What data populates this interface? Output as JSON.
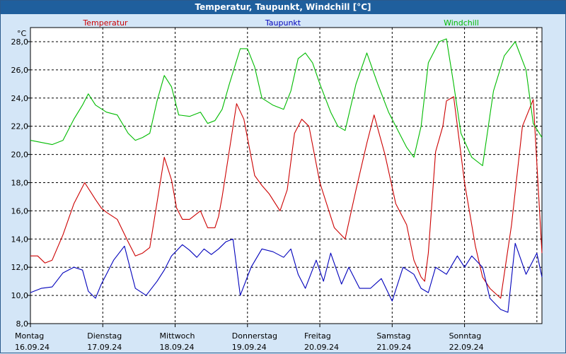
{
  "window": {
    "title": "Temperatur, Taupunkt, Windchill [°C]"
  },
  "chart_data": {
    "type": "line",
    "title": "Temperatur, Taupunkt, Windchill [°C]",
    "ylabel": "°C",
    "ylim": [
      8.0,
      29.0
    ],
    "yticks": [
      "8,0",
      "10,0",
      "12,0",
      "14,0",
      "16,0",
      "18,0",
      "20,0",
      "22,0",
      "24,0",
      "26,0",
      "28,0"
    ],
    "xlim": [
      0,
      7.07
    ],
    "day_labels": [
      {
        "day": "Montag",
        "date": "16.09.24"
      },
      {
        "day": "Dienstag",
        "date": "17.09.24"
      },
      {
        "day": "Mittwoch",
        "date": "18.09.24"
      },
      {
        "day": "Donnerstag",
        "date": "19.09.24"
      },
      {
        "day": "Freitag",
        "date": "20.09.24"
      },
      {
        "day": "Samstag",
        "date": "21.09.24"
      },
      {
        "day": "Sonntag",
        "date": "22.09.24"
      }
    ],
    "grid": true,
    "series": [
      {
        "name": "Temperatur",
        "color": "#cc0000",
        "x": [
          0,
          0.1,
          0.2,
          0.3,
          0.45,
          0.6,
          0.75,
          0.9,
          0.98,
          1.05,
          1.2,
          1.35,
          1.45,
          1.55,
          1.65,
          1.85,
          1.95,
          2.02,
          2.1,
          2.2,
          2.35,
          2.45,
          2.55,
          2.6,
          2.65,
          2.75,
          2.85,
          2.95,
          3.1,
          3.2,
          3.3,
          3.45,
          3.55,
          3.65,
          3.75,
          3.85,
          4.0,
          4.2,
          4.35,
          4.5,
          4.65,
          4.75,
          4.9,
          5.05,
          5.2,
          5.3,
          5.4,
          5.45,
          5.5,
          5.6,
          5.7,
          5.75,
          5.85,
          6.0,
          6.15,
          6.25,
          6.35,
          6.5,
          6.65,
          6.8,
          6.95,
          7.07
        ],
        "values": [
          12.8,
          12.8,
          12.3,
          12.5,
          14.3,
          16.5,
          18.0,
          16.8,
          16.2,
          15.9,
          15.4,
          13.8,
          12.8,
          13.0,
          13.4,
          19.8,
          18.2,
          16.2,
          15.4,
          15.4,
          16.0,
          14.8,
          14.8,
          15.6,
          17.0,
          20.3,
          23.6,
          22.5,
          18.5,
          17.8,
          17.2,
          16.0,
          17.5,
          21.5,
          22.5,
          22.0,
          18.0,
          14.8,
          14.0,
          17.5,
          20.8,
          22.8,
          20.0,
          16.5,
          15.0,
          12.5,
          11.3,
          11.0,
          13.0,
          20.2,
          22.0,
          23.8,
          24.1,
          18.0,
          13.5,
          11.3,
          10.5,
          9.8,
          15.0,
          22.0,
          23.9,
          13.0
        ]
      },
      {
        "name": "Taupunkt",
        "color": "#0000bb",
        "x": [
          0,
          0.15,
          0.3,
          0.45,
          0.6,
          0.72,
          0.8,
          0.9,
          0.98,
          1.05,
          1.15,
          1.3,
          1.45,
          1.6,
          1.75,
          1.85,
          1.95,
          2.1,
          2.2,
          2.3,
          2.4,
          2.5,
          2.6,
          2.7,
          2.8,
          2.9,
          3.05,
          3.2,
          3.35,
          3.5,
          3.6,
          3.7,
          3.8,
          3.95,
          4.05,
          4.15,
          4.3,
          4.4,
          4.55,
          4.7,
          4.85,
          5.0,
          5.15,
          5.3,
          5.4,
          5.5,
          5.6,
          5.75,
          5.9,
          6.0,
          6.1,
          6.25,
          6.35,
          6.5,
          6.6,
          6.7,
          6.85,
          7.0,
          7.07
        ],
        "values": [
          10.2,
          10.5,
          10.6,
          11.6,
          12.0,
          11.8,
          10.3,
          9.8,
          10.8,
          11.5,
          12.5,
          13.5,
          10.5,
          10.0,
          11.0,
          11.8,
          12.8,
          13.6,
          13.2,
          12.7,
          13.3,
          12.9,
          13.3,
          13.8,
          14.0,
          10.0,
          12.0,
          13.3,
          13.1,
          12.7,
          13.3,
          11.5,
          10.5,
          12.5,
          11.0,
          13.0,
          10.8,
          12.0,
          10.5,
          10.5,
          11.2,
          9.6,
          12.0,
          11.5,
          10.5,
          10.2,
          12.0,
          11.5,
          12.8,
          12.0,
          12.8,
          12.0,
          9.8,
          9.0,
          8.8,
          13.7,
          11.5,
          13.0,
          11.3
        ]
      },
      {
        "name": "Windchill",
        "color": "#00bb00",
        "x": [
          0,
          0.2,
          0.3,
          0.45,
          0.6,
          0.72,
          0.8,
          0.9,
          1.05,
          1.2,
          1.35,
          1.45,
          1.55,
          1.65,
          1.75,
          1.85,
          1.95,
          2.05,
          2.2,
          2.35,
          2.45,
          2.55,
          2.65,
          2.75,
          2.9,
          3.0,
          3.1,
          3.2,
          3.35,
          3.5,
          3.6,
          3.7,
          3.8,
          3.9,
          4.0,
          4.15,
          4.25,
          4.35,
          4.5,
          4.65,
          4.8,
          4.95,
          5.05,
          5.2,
          5.3,
          5.4,
          5.5,
          5.65,
          5.75,
          5.85,
          5.95,
          6.1,
          6.25,
          6.4,
          6.55,
          6.7,
          6.85,
          6.95,
          7.07
        ],
        "values": [
          21.0,
          20.8,
          20.7,
          21.0,
          22.5,
          23.5,
          24.3,
          23.5,
          23.0,
          22.8,
          21.5,
          21.0,
          21.2,
          21.5,
          23.8,
          25.6,
          24.8,
          22.8,
          22.7,
          23.0,
          22.2,
          22.4,
          23.2,
          25.0,
          27.5,
          27.5,
          26.2,
          24.0,
          23.5,
          23.2,
          24.5,
          26.8,
          27.2,
          26.5,
          25.0,
          23.0,
          22.0,
          21.7,
          25.0,
          27.2,
          25.0,
          23.0,
          22.0,
          20.5,
          19.8,
          22.0,
          26.5,
          28.0,
          28.2,
          25.0,
          21.5,
          19.8,
          19.2,
          24.5,
          27.0,
          28.0,
          26.0,
          22.2,
          21.2
        ]
      }
    ]
  }
}
